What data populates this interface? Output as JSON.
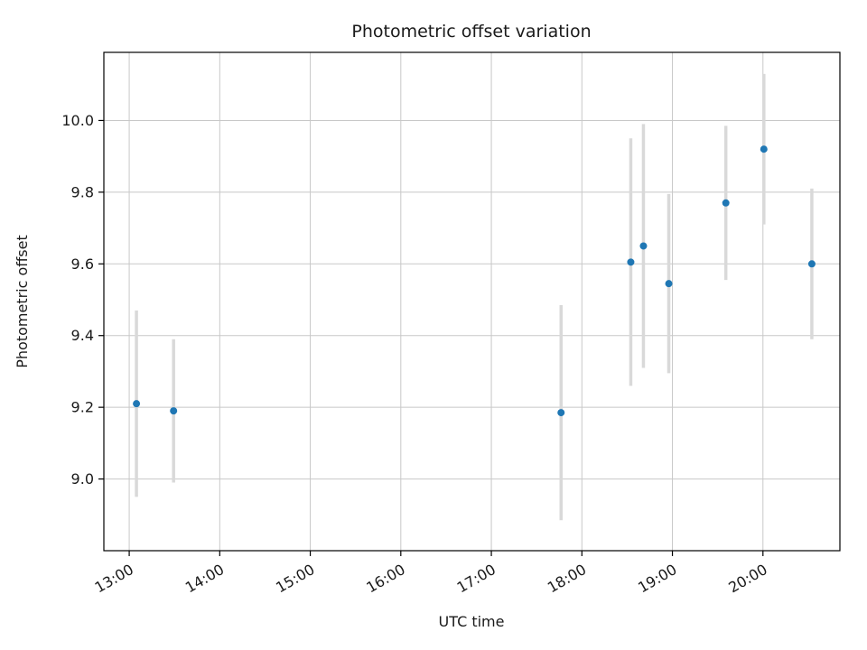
{
  "figure": {
    "background": "#ffffff"
  },
  "chart_data": {
    "type": "scatter",
    "title": "Photometric offset variation",
    "xlabel": "UTC time",
    "ylabel": "Photometric offset",
    "grid": true,
    "legend": "none",
    "marker_color": "#1f77b4",
    "errorbar_color": "#d9d9d9",
    "grid_color": "#c8c8c8",
    "spine_color": "#000000",
    "x_tick_labels": [
      "13:00",
      "14:00",
      "15:00",
      "16:00",
      "17:00",
      "18:00",
      "19:00",
      "20:00"
    ],
    "x_tick_hours": [
      13,
      14,
      15,
      16,
      17,
      18,
      19,
      20
    ],
    "y_ticks": [
      9.0,
      9.2,
      9.4,
      9.6,
      9.8,
      10.0
    ],
    "xlim_hours": [
      12.72,
      20.85
    ],
    "ylim": [
      8.8,
      10.19
    ],
    "points": [
      {
        "time": "13:05",
        "x_hours": 13.08,
        "y": 9.21,
        "yerr": 0.26
      },
      {
        "time": "13:29",
        "x_hours": 13.49,
        "y": 9.19,
        "yerr": 0.2
      },
      {
        "time": "17:46",
        "x_hours": 17.77,
        "y": 9.185,
        "yerr": 0.3
      },
      {
        "time": "18:32",
        "x_hours": 18.54,
        "y": 9.605,
        "yerr": 0.345
      },
      {
        "time": "18:41",
        "x_hours": 18.68,
        "y": 9.65,
        "yerr": 0.34
      },
      {
        "time": "18:58",
        "x_hours": 18.96,
        "y": 9.545,
        "yerr": 0.25
      },
      {
        "time": "19:35",
        "x_hours": 19.59,
        "y": 9.77,
        "yerr": 0.215
      },
      {
        "time": "20:01",
        "x_hours": 20.01,
        "y": 9.92,
        "yerr": 0.21
      },
      {
        "time": "20:32",
        "x_hours": 20.54,
        "y": 9.6,
        "yerr": 0.21
      }
    ]
  }
}
